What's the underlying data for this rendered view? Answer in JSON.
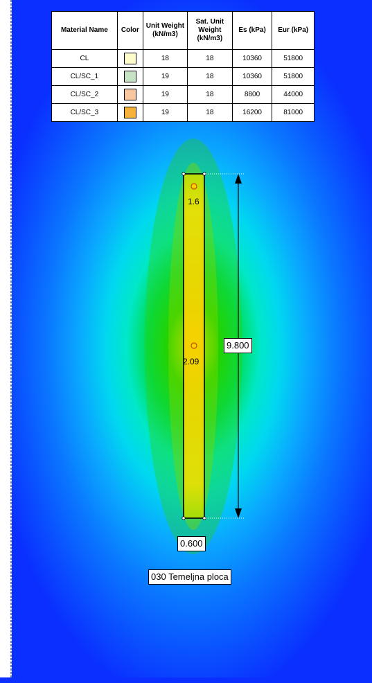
{
  "table": {
    "headers": {
      "material_name": "Material Name",
      "color": "Color",
      "unit_weight": "Unit Weight (kN/m3)",
      "sat_unit_weight": "Sat. Unit Weight (kN/m3)",
      "es": "Es (kPa)",
      "eur": "Eur (kPa)"
    },
    "rows": [
      {
        "name": "CL",
        "color": "#fffccc",
        "unit_weight": "18",
        "sat_unit_weight": "18",
        "es": "10360",
        "eur": "51800"
      },
      {
        "name": "CL/SC_1",
        "color": "#c6e3c4",
        "unit_weight": "19",
        "sat_unit_weight": "18",
        "es": "10360",
        "eur": "51800"
      },
      {
        "name": "CL/SC_2",
        "color": "#f9c79f",
        "unit_weight": "19",
        "sat_unit_weight": "18",
        "es": "8800",
        "eur": "44000"
      },
      {
        "name": "CL/SC_3",
        "color": "#f7b23b",
        "unit_weight": "19",
        "sat_unit_weight": "18",
        "es": "16200",
        "eur": "81000"
      }
    ]
  },
  "diagram": {
    "height_dimension": "9.800",
    "width_dimension": "0.600",
    "foundation_label": "030 Temeljna ploca",
    "query_points": [
      {
        "value": "1.6"
      },
      {
        "value": "2.09"
      }
    ]
  },
  "colors": {
    "background_far": "#0a2fff",
    "contour_mid": "#00e5e5",
    "contour_near": "#00d000",
    "contour_peak": "#ffe000"
  }
}
